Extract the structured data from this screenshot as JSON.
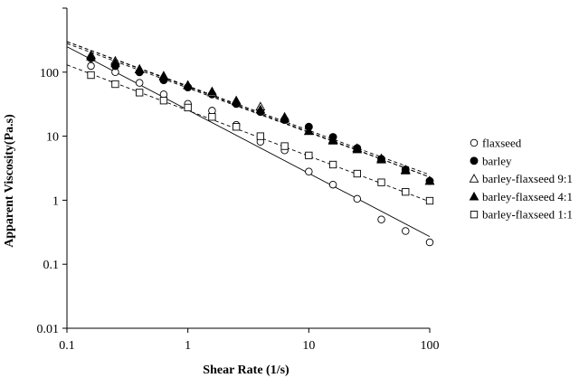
{
  "chart_data": {
    "type": "scatter",
    "title": "",
    "xlabel": "Shear Rate (1/s)",
    "ylabel": "Apparent Viscosity(Pa.s)",
    "xscale": "log",
    "yscale": "log",
    "xlim": [
      0.1,
      100
    ],
    "ylim": [
      0.01,
      1000
    ],
    "x_ticks": [
      "0.1",
      "1",
      "10",
      "100"
    ],
    "y_ticks": [
      "0.01",
      "0.1",
      "1",
      "10",
      "100"
    ],
    "grid": false,
    "legend_position": "right",
    "series": [
      {
        "name": "flaxseed",
        "marker": "open-circle",
        "line": "solid",
        "x": [
          0.158,
          0.251,
          0.398,
          0.631,
          1.0,
          1.585,
          2.512,
          3.981,
          6.31,
          10.0,
          15.85,
          25.12,
          39.81,
          63.1,
          100.0
        ],
        "y": [
          125,
          100,
          68,
          45,
          32,
          25,
          15,
          8.2,
          6.0,
          2.8,
          1.75,
          1.05,
          0.5,
          0.33,
          0.22
        ],
        "fit": [
          [
            0.1,
            250
          ],
          [
            100,
            0.27
          ]
        ]
      },
      {
        "name": "barley",
        "marker": "filled-circle",
        "line": "dashed",
        "x": [
          0.158,
          0.251,
          0.398,
          0.631,
          1.0,
          1.585,
          2.512,
          3.981,
          6.31,
          10.0,
          15.85,
          25.12,
          39.81,
          63.1,
          100.0
        ],
        "y": [
          165,
          125,
          100,
          75,
          58,
          45,
          32,
          24,
          18,
          14,
          9.7,
          6.5,
          4.4,
          3.0,
          2.0
        ],
        "fit": [
          [
            0.1,
            280
          ],
          [
            100,
            2.3
          ]
        ]
      },
      {
        "name": "barley-flaxseed 9:1",
        "marker": "open-triangle",
        "line": "dashed",
        "x": [
          0.158,
          0.251,
          0.398,
          0.631,
          1.0,
          1.585,
          2.512,
          3.981,
          6.31,
          10.0,
          15.85,
          25.12,
          39.81,
          63.1,
          100.0
        ],
        "y": [
          185,
          150,
          112,
          88,
          62,
          48,
          36,
          29,
          20,
          12,
          8.8,
          6.5,
          4.5,
          3.0,
          2.0
        ],
        "fit": [
          [
            0.1,
            300
          ],
          [
            100,
            2.5
          ]
        ]
      },
      {
        "name": "barley-flaxseed 4:1",
        "marker": "filled-triangle",
        "line": "dashed",
        "x": [
          0.158,
          0.251,
          0.398,
          0.631,
          1.0,
          1.585,
          2.512,
          3.981,
          6.31,
          10.0,
          15.85,
          25.12,
          39.81,
          63.1,
          100.0
        ],
        "y": [
          175,
          140,
          110,
          85,
          63,
          50,
          35,
          26,
          19,
          12,
          8.5,
          6.2,
          4.3,
          2.9,
          2.0
        ],
        "fit": [
          [
            0.1,
            300
          ],
          [
            100,
            2.3
          ]
        ]
      },
      {
        "name": "barley-flaxseed 1:1",
        "marker": "open-square",
        "line": "dashed",
        "x": [
          0.158,
          0.251,
          0.398,
          0.631,
          1.0,
          1.585,
          2.512,
          3.981,
          6.31,
          10.0,
          15.85,
          25.12,
          39.81,
          63.1,
          100.0
        ],
        "y": [
          90,
          65,
          48,
          36,
          28,
          20,
          14,
          10,
          7.0,
          5.0,
          3.6,
          2.6,
          1.9,
          1.35,
          0.98
        ],
        "fit": [
          [
            0.1,
            130
          ],
          [
            100,
            0.95
          ]
        ]
      }
    ]
  }
}
